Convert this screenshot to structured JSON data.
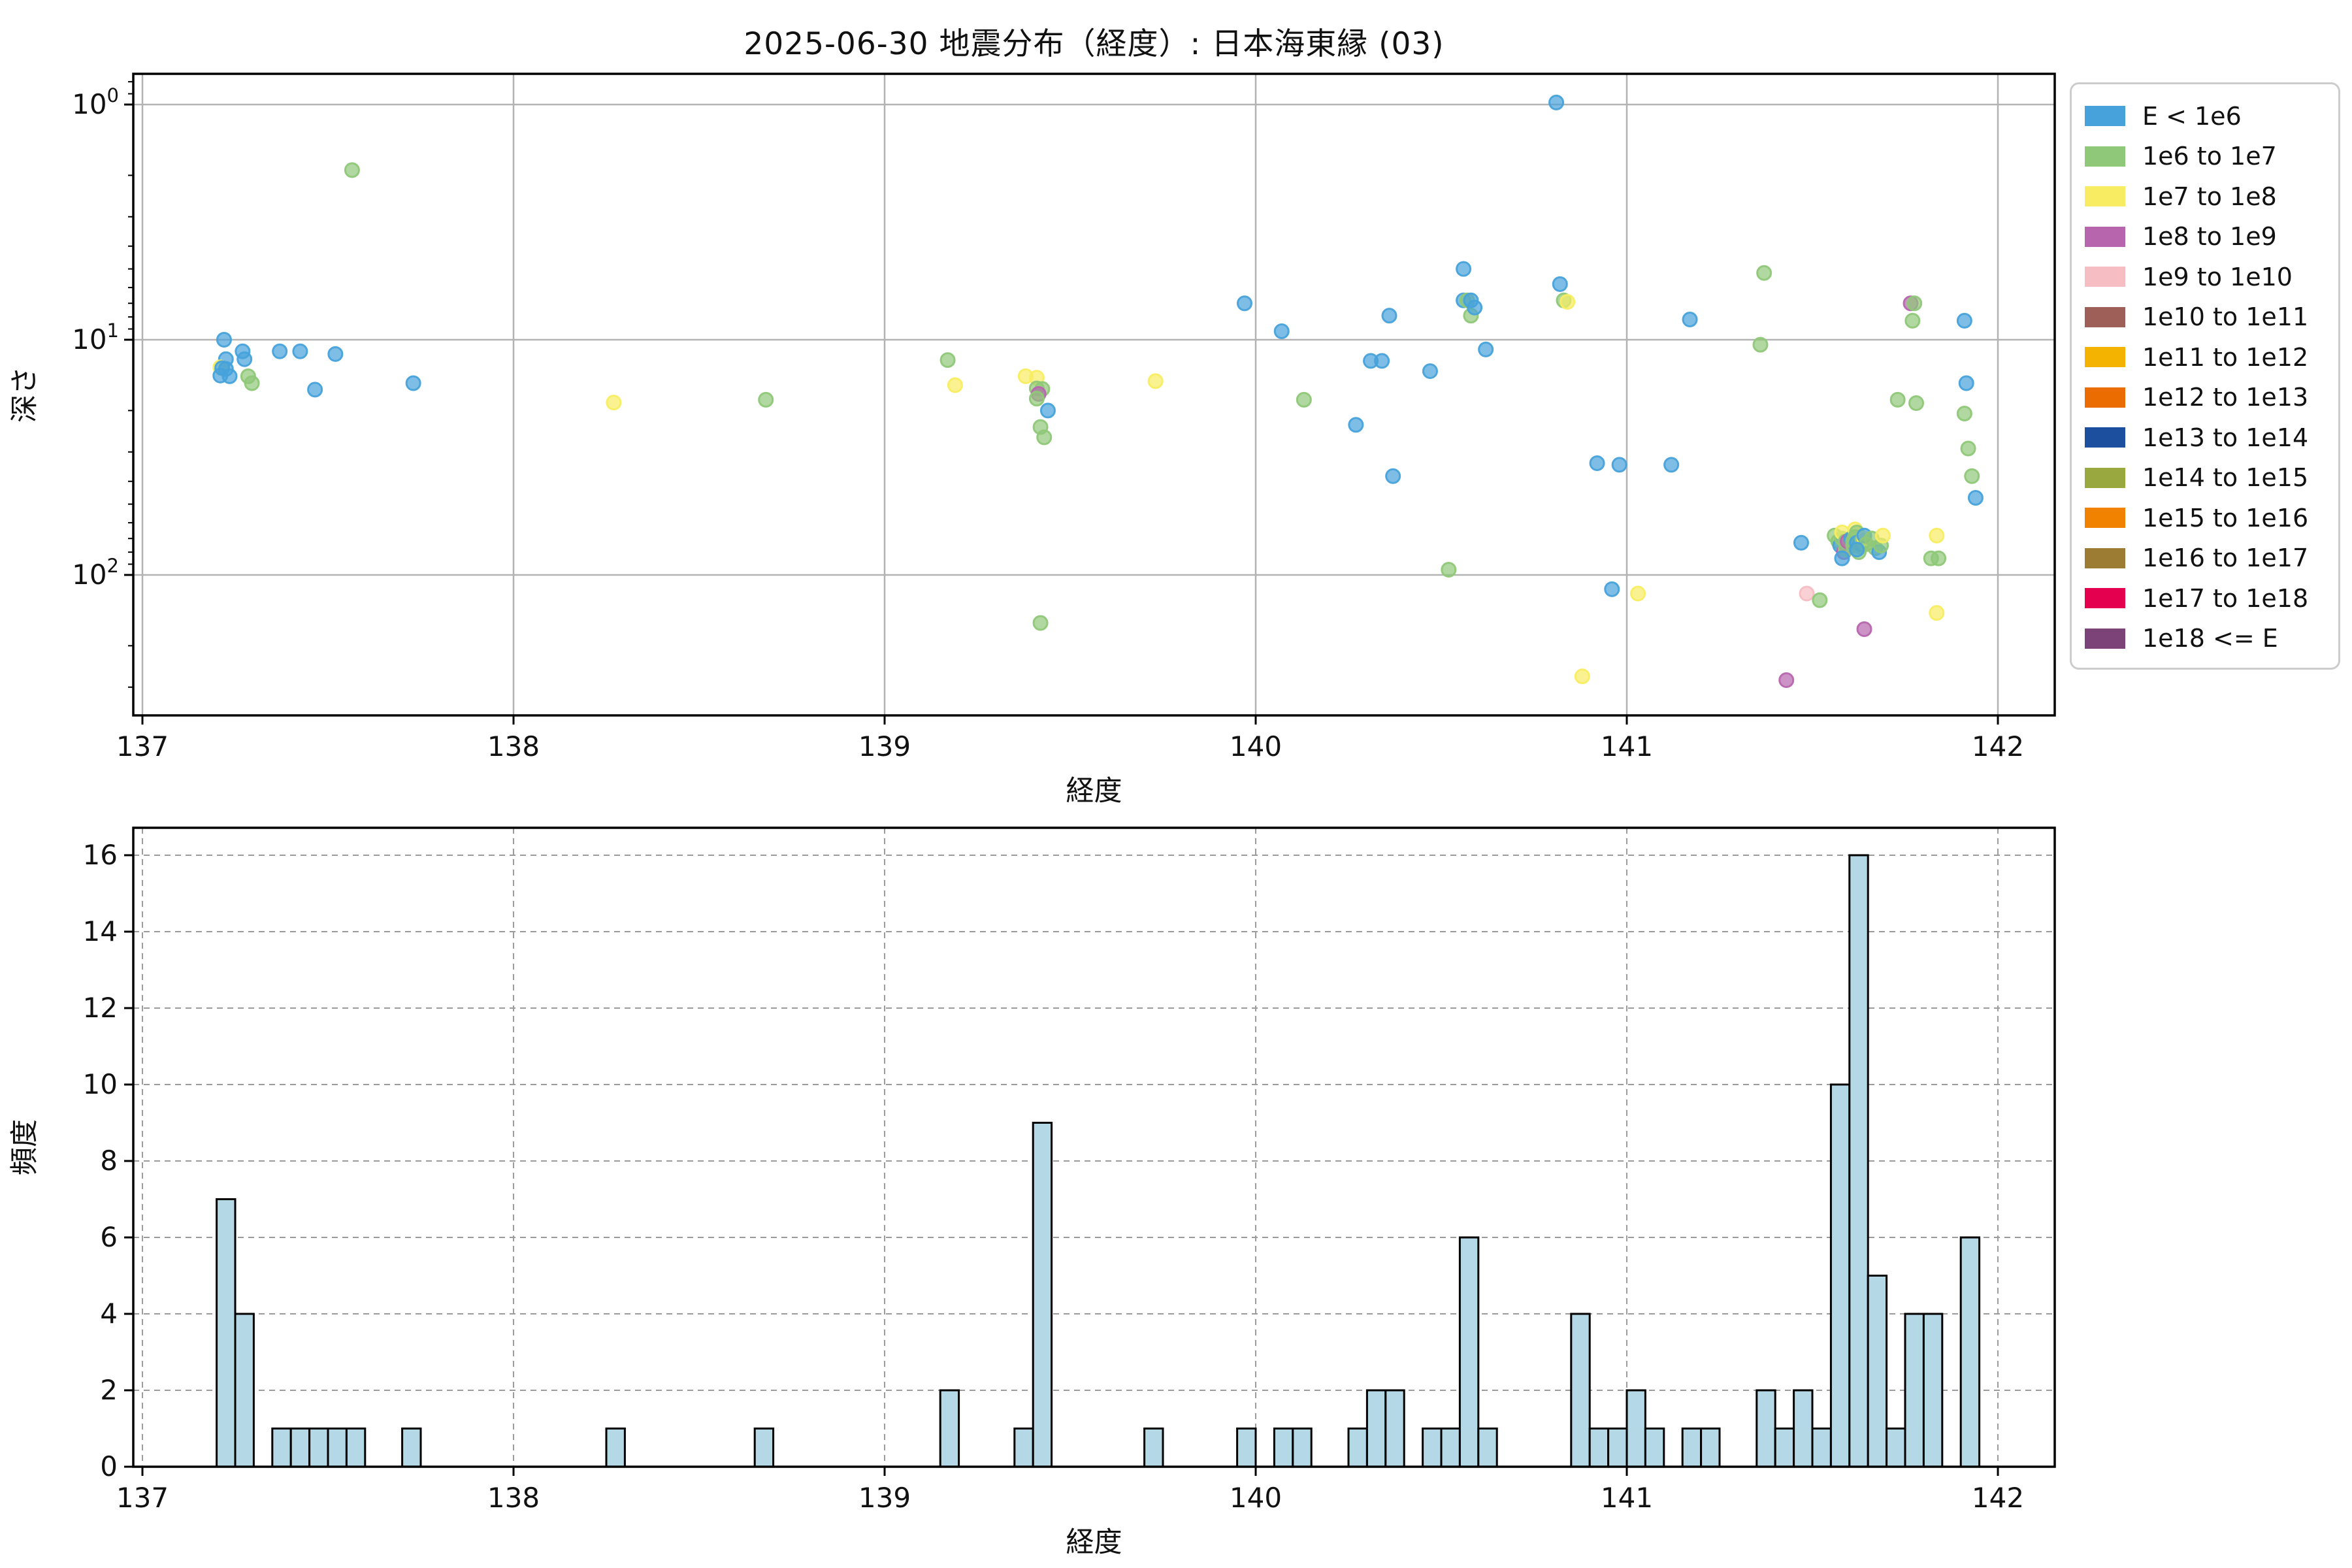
{
  "title": "2025-06-30 地震分布（経度）: 日本海東縁 (03)",
  "legend": {
    "items": [
      {
        "label": "E < 1e6",
        "color": "#47A2DB"
      },
      {
        "label": "1e6 to 1e7",
        "color": "#8FC878"
      },
      {
        "label": "1e7 to 1e8",
        "color": "#F8ED62"
      },
      {
        "label": "1e8 to 1e9",
        "color": "#B766AE"
      },
      {
        "label": "1e9 to 1e10",
        "color": "#F6BDC3"
      },
      {
        "label": "1e10 to 1e11",
        "color": "#9E5F59"
      },
      {
        "label": "1e11 to 1e12",
        "color": "#F5B301"
      },
      {
        "label": "1e12 to 1e13",
        "color": "#EB6C00"
      },
      {
        "label": "1e13 to 1e14",
        "color": "#1D4F9F"
      },
      {
        "label": "1e14 to 1e15",
        "color": "#9AA93F"
      },
      {
        "label": "1e15 to 1e16",
        "color": "#F08200"
      },
      {
        "label": "1e16 to 1e17",
        "color": "#9C7B33"
      },
      {
        "label": "1e17 to 1e18",
        "color": "#E4004F"
      },
      {
        "label": "1e18 <= E",
        "color": "#7C4379"
      }
    ]
  },
  "chart_data": [
    {
      "type": "scatter",
      "title": "2025-06-30 地震分布（経度）: 日本海東縁 (03)",
      "xlabel": "経度",
      "ylabel": "深さ",
      "x_ticks": [
        137,
        138,
        139,
        140,
        141,
        142
      ],
      "xlim": [
        136.975,
        142.155
      ],
      "y_scale": "log-inverted",
      "y_tick_exponents": [
        0,
        1,
        2
      ],
      "ylim_depth": [
        0.74,
        395
      ],
      "grid": "solid",
      "point_alpha": 0.7,
      "categories": [
        "E < 1e6",
        "1e6 to 1e7",
        "1e7 to 1e8",
        "1e8 to 1e9",
        "1e9 to 1e10"
      ],
      "points": [
        [
          137.22,
          10.0,
          0
        ],
        [
          137.225,
          12.1,
          0
        ],
        [
          137.21,
          13.1,
          2
        ],
        [
          137.215,
          13.2,
          0
        ],
        [
          137.225,
          13.3,
          0
        ],
        [
          137.21,
          14.2,
          0
        ],
        [
          137.235,
          14.3,
          0
        ],
        [
          137.27,
          11.2,
          0
        ],
        [
          137.275,
          12.1,
          0
        ],
        [
          137.285,
          14.3,
          1
        ],
        [
          137.295,
          15.3,
          1
        ],
        [
          137.37,
          11.2,
          0
        ],
        [
          137.425,
          11.2,
          0
        ],
        [
          137.465,
          16.3,
          0
        ],
        [
          137.52,
          11.5,
          0
        ],
        [
          137.565,
          1.9,
          1
        ],
        [
          137.73,
          15.3,
          0
        ],
        [
          138.27,
          18.5,
          2
        ],
        [
          138.68,
          18.0,
          1
        ],
        [
          139.17,
          12.2,
          1
        ],
        [
          139.19,
          15.6,
          2
        ],
        [
          139.38,
          14.3,
          2
        ],
        [
          139.41,
          14.5,
          2
        ],
        [
          139.41,
          16.1,
          1
        ],
        [
          139.425,
          16.2,
          1
        ],
        [
          139.415,
          17.0,
          3
        ],
        [
          139.41,
          17.8,
          1
        ],
        [
          139.42,
          23.5,
          1
        ],
        [
          139.44,
          20.0,
          0
        ],
        [
          139.43,
          26.0,
          1
        ],
        [
          139.42,
          160,
          1
        ],
        [
          139.73,
          15.0,
          2
        ],
        [
          139.97,
          7.0,
          0
        ],
        [
          140.07,
          9.2,
          0
        ],
        [
          140.13,
          18.0,
          1
        ],
        [
          140.27,
          23.0,
          0
        ],
        [
          140.31,
          12.3,
          0
        ],
        [
          140.34,
          12.3,
          0
        ],
        [
          140.36,
          7.9,
          0
        ],
        [
          140.37,
          38,
          0
        ],
        [
          140.47,
          13.6,
          0
        ],
        [
          140.52,
          95,
          1
        ],
        [
          140.56,
          5.0,
          0
        ],
        [
          140.56,
          6.8,
          0
        ],
        [
          140.57,
          6.8,
          1
        ],
        [
          140.58,
          6.8,
          0
        ],
        [
          140.58,
          7.9,
          1
        ],
        [
          140.59,
          7.3,
          0
        ],
        [
          140.62,
          11,
          0
        ],
        [
          140.81,
          0.98,
          0
        ],
        [
          140.82,
          5.8,
          0
        ],
        [
          140.83,
          6.8,
          1
        ],
        [
          140.84,
          6.9,
          2
        ],
        [
          140.88,
          270,
          2
        ],
        [
          140.92,
          33.5,
          0
        ],
        [
          140.96,
          115,
          0
        ],
        [
          140.98,
          34,
          0
        ],
        [
          141.03,
          120,
          2
        ],
        [
          141.12,
          34,
          0
        ],
        [
          141.17,
          8.2,
          0
        ],
        [
          141.36,
          10.5,
          1
        ],
        [
          141.37,
          5.2,
          1
        ],
        [
          141.43,
          280,
          3
        ],
        [
          141.47,
          73,
          0
        ],
        [
          141.485,
          120,
          4
        ],
        [
          141.52,
          128,
          1
        ],
        [
          141.56,
          68,
          1
        ],
        [
          141.57,
          72,
          1
        ],
        [
          141.575,
          75,
          0
        ],
        [
          141.58,
          70,
          1
        ],
        [
          141.58,
          66,
          2
        ],
        [
          141.585,
          80,
          3
        ],
        [
          141.59,
          72,
          1
        ],
        [
          141.59,
          78,
          1
        ],
        [
          141.595,
          72,
          3
        ],
        [
          141.58,
          85,
          0
        ],
        [
          141.605,
          70,
          0
        ],
        [
          141.61,
          72,
          1
        ],
        [
          141.61,
          75,
          1
        ],
        [
          141.615,
          64,
          2
        ],
        [
          141.615,
          69,
          1
        ],
        [
          141.62,
          66,
          1
        ],
        [
          141.62,
          73,
          0
        ],
        [
          141.625,
          80,
          1
        ],
        [
          141.63,
          74,
          0
        ],
        [
          141.63,
          76,
          1
        ],
        [
          141.635,
          71,
          1
        ],
        [
          141.64,
          70,
          2
        ],
        [
          141.64,
          68,
          0
        ],
        [
          141.645,
          74,
          1
        ],
        [
          141.64,
          170,
          3
        ],
        [
          141.62,
          78,
          0
        ],
        [
          141.66,
          70,
          1
        ],
        [
          141.67,
          77,
          1
        ],
        [
          141.68,
          80,
          0
        ],
        [
          141.685,
          75,
          1
        ],
        [
          141.69,
          68,
          2
        ],
        [
          141.73,
          18,
          1
        ],
        [
          141.765,
          7.0,
          3
        ],
        [
          141.775,
          7.0,
          1
        ],
        [
          141.77,
          8.3,
          1
        ],
        [
          141.78,
          18.6,
          1
        ],
        [
          141.82,
          85,
          1
        ],
        [
          141.835,
          68,
          2
        ],
        [
          141.835,
          145,
          2
        ],
        [
          141.84,
          85,
          1
        ],
        [
          141.91,
          8.3,
          0
        ],
        [
          141.915,
          15.3,
          0
        ],
        [
          141.91,
          20.6,
          1
        ],
        [
          141.92,
          29,
          1
        ],
        [
          141.93,
          38,
          1
        ],
        [
          141.94,
          47,
          0
        ]
      ]
    },
    {
      "type": "bar",
      "xlabel": "経度",
      "ylabel": "頻度",
      "x_ticks": [
        137,
        138,
        139,
        140,
        141,
        142
      ],
      "xlim": [
        136.975,
        142.155
      ],
      "y_ticks": [
        0,
        2,
        4,
        6,
        8,
        10,
        12,
        14,
        16
      ],
      "ylim": [
        0,
        16.7
      ],
      "grid": "dashed",
      "bin_width": 0.05,
      "bar_color": "#B5D8E6",
      "bar_edge": "#000000",
      "bars": [
        [
          137.2,
          7
        ],
        [
          137.25,
          4
        ],
        [
          137.35,
          1
        ],
        [
          137.4,
          1
        ],
        [
          137.45,
          1
        ],
        [
          137.5,
          1
        ],
        [
          137.55,
          1
        ],
        [
          137.7,
          1
        ],
        [
          138.25,
          1
        ],
        [
          138.65,
          1
        ],
        [
          139.15,
          2
        ],
        [
          139.35,
          1
        ],
        [
          139.4,
          9
        ],
        [
          139.7,
          1
        ],
        [
          139.95,
          1
        ],
        [
          140.05,
          1
        ],
        [
          140.1,
          1
        ],
        [
          140.25,
          1
        ],
        [
          140.3,
          2
        ],
        [
          140.35,
          2
        ],
        [
          140.45,
          1
        ],
        [
          140.5,
          1
        ],
        [
          140.55,
          6
        ],
        [
          140.6,
          1
        ],
        [
          140.85,
          4
        ],
        [
          140.9,
          1
        ],
        [
          140.95,
          1
        ],
        [
          141.0,
          2
        ],
        [
          141.05,
          1
        ],
        [
          141.15,
          1
        ],
        [
          141.2,
          1
        ],
        [
          141.35,
          2
        ],
        [
          141.4,
          1
        ],
        [
          141.45,
          2
        ],
        [
          141.5,
          1
        ],
        [
          141.55,
          10
        ],
        [
          141.6,
          16
        ],
        [
          141.65,
          5
        ],
        [
          141.7,
          1
        ],
        [
          141.75,
          4
        ],
        [
          141.8,
          4
        ],
        [
          141.9,
          6
        ]
      ]
    }
  ]
}
